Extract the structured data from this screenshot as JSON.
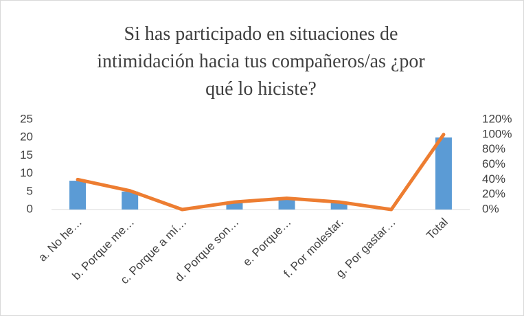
{
  "chart_data": {
    "type": "bar",
    "title": "Si has participado en situaciones de intimidación hacia tus compañeros/as ¿por qué lo hiciste?",
    "categories": [
      "a. No he…",
      "b. Porque me…",
      "c. Porque a mí…",
      "d. Porque son…",
      "e. Porque…",
      "f. Por molestar.",
      "g. Por gastar…",
      "Total"
    ],
    "series": [
      {
        "type": "bar",
        "color": "#5b9bd5",
        "values": [
          8,
          5,
          0,
          2,
          3,
          2,
          0,
          20
        ]
      },
      {
        "type": "line",
        "axis": "y2",
        "color": "#ed7d31",
        "values": [
          40,
          25,
          0,
          10,
          15,
          10,
          0,
          100
        ]
      }
    ],
    "ylim": [
      0,
      25
    ],
    "yticks": [
      0,
      5,
      10,
      15,
      20,
      25
    ],
    "y2lim": [
      0,
      120
    ],
    "y2ticks": [
      {
        "value": 0,
        "label": "0%"
      },
      {
        "value": 20,
        "label": "20%"
      },
      {
        "value": 40,
        "label": "40%"
      },
      {
        "value": 60,
        "label": "60%"
      },
      {
        "value": 80,
        "label": "80%"
      },
      {
        "value": 100,
        "label": "100%"
      },
      {
        "value": 120,
        "label": "120%"
      }
    ]
  }
}
